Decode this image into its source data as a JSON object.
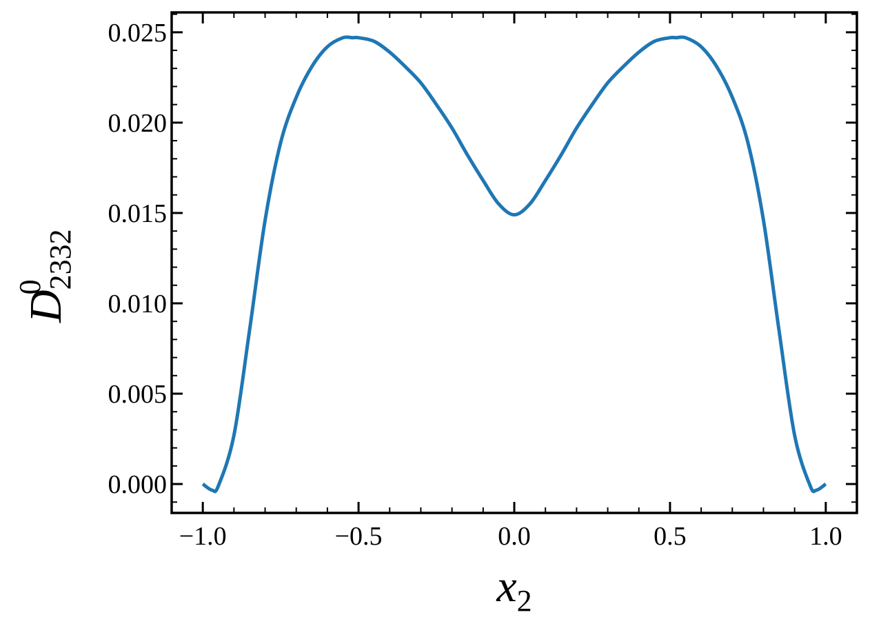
{
  "chart_data": {
    "type": "line",
    "xlabel": {
      "base": "x",
      "sub": "2"
    },
    "ylabel": {
      "base": "D",
      "sub": "2332",
      "sup": "0"
    },
    "x": [
      -1.0,
      -0.97,
      -0.95,
      -0.9,
      -0.85,
      -0.8,
      -0.75,
      -0.7,
      -0.65,
      -0.6,
      -0.55,
      -0.52,
      -0.5,
      -0.45,
      -0.4,
      -0.35,
      -0.3,
      -0.25,
      -0.2,
      -0.15,
      -0.1,
      -0.05,
      0.0,
      0.05,
      0.1,
      0.15,
      0.2,
      0.25,
      0.3,
      0.35,
      0.4,
      0.45,
      0.5,
      0.52,
      0.55,
      0.6,
      0.65,
      0.7,
      0.75,
      0.8,
      0.85,
      0.9,
      0.95,
      0.97,
      1.0
    ],
    "series": [
      {
        "color": "#1f77b4",
        "values": [
          0.0,
          -0.00034,
          -0.0001,
          0.0027,
          0.0085,
          0.0146,
          0.0189,
          0.0214,
          0.0231,
          0.0242,
          0.0247,
          0.0247,
          0.0247,
          0.0245,
          0.0239,
          0.0231,
          0.0222,
          0.021,
          0.0197,
          0.0182,
          0.0168,
          0.0155,
          0.0149,
          0.0155,
          0.0168,
          0.0182,
          0.0197,
          0.021,
          0.0222,
          0.0231,
          0.0239,
          0.0245,
          0.0247,
          0.0247,
          0.0247,
          0.0242,
          0.0231,
          0.0214,
          0.0189,
          0.0146,
          0.0085,
          0.0027,
          -0.0001,
          -0.00034,
          0.0
        ]
      }
    ],
    "xlim": [
      -1.1,
      1.1
    ],
    "ylim": [
      -0.0016,
      0.0261
    ],
    "xticks": [
      {
        "value": -1.0,
        "label": "−1.0"
      },
      {
        "value": -0.5,
        "label": "−0.5"
      },
      {
        "value": 0.0,
        "label": "0.0"
      },
      0.5,
      {
        "value": 1.0,
        "label": "1.0"
      }
    ],
    "yticks": [
      {
        "value": 0.0,
        "label": "0.000"
      },
      0.005,
      {
        "value": 0.01,
        "label": "0.010"
      },
      0.015,
      {
        "value": 0.02,
        "label": "0.020"
      },
      0.025
    ],
    "grid": false
  }
}
